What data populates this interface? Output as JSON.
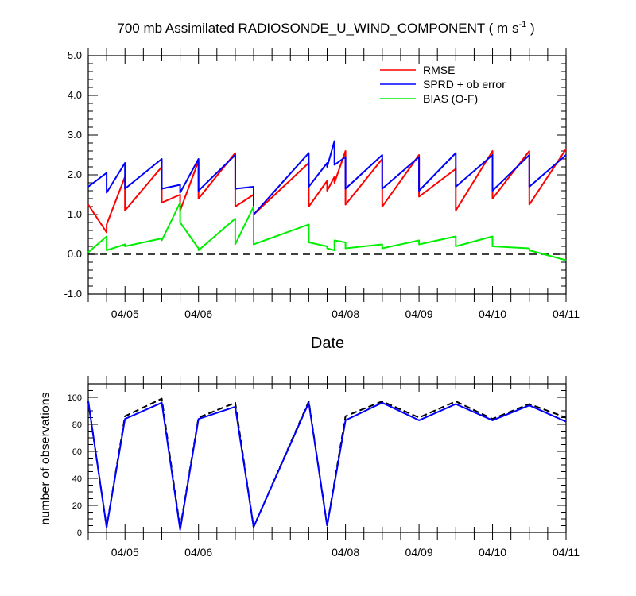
{
  "chart_data": [
    {
      "type": "line",
      "title": "700 mb Assimilated RADIOSONDE_U_WIND_COMPONENT ( m s",
      "title_superscript": "-1",
      "title_suffix": " )",
      "xlabel": "Date",
      "ylabel": "",
      "ylim": [
        -1.0,
        5.0
      ],
      "xlim": [
        0,
        6.5
      ],
      "ytick_labels": [
        "5.0",
        "4.0",
        "3.0",
        "2.0",
        "1.0",
        "0.0",
        "-1.0"
      ],
      "ytick_values": [
        5,
        4,
        3,
        2,
        1,
        0,
        -1
      ],
      "xtick_labels": [
        "04/05",
        "04/06",
        "04/08",
        "04/09",
        "04/10",
        "04/11"
      ],
      "xtick_values": [
        0.5,
        1.5,
        3.5,
        4.5,
        5.5,
        6.5
      ],
      "zero_line": "dashed",
      "legend_position": "top-right",
      "series": [
        {
          "name": "RMSE",
          "color": "#ff0000",
          "x": [
            0,
            0.25,
            0.25,
            0.5,
            0.5,
            1.0,
            1.0,
            1.25,
            1.25,
            1.5,
            1.5,
            2.0,
            2.0,
            2.25,
            2.25,
            3.0,
            3.0,
            3.25,
            3.25,
            3.35,
            3.35,
            3.5,
            3.5,
            4.0,
            4.0,
            4.5,
            4.5,
            5.0,
            5.0,
            5.5,
            5.5,
            6.0,
            6.0,
            6.5
          ],
          "y": [
            1.25,
            0.55,
            0.75,
            1.95,
            1.1,
            2.2,
            1.3,
            1.5,
            1.1,
            2.35,
            1.4,
            2.55,
            1.2,
            1.5,
            1.0,
            2.3,
            1.2,
            1.85,
            1.6,
            1.95,
            1.8,
            2.6,
            1.25,
            2.4,
            1.2,
            2.5,
            1.45,
            2.15,
            1.1,
            2.6,
            1.4,
            2.6,
            1.25,
            2.65
          ]
        },
        {
          "name": "SPRD + ob error",
          "color": "#0000ff",
          "x": [
            0,
            0.25,
            0.25,
            0.5,
            0.5,
            1.0,
            1.0,
            1.25,
            1.25,
            1.5,
            1.5,
            2.0,
            2.0,
            2.25,
            2.25,
            3.0,
            3.0,
            3.25,
            3.25,
            3.35,
            3.35,
            3.5,
            3.5,
            4.0,
            4.0,
            4.5,
            4.5,
            5.0,
            5.0,
            5.5,
            5.5,
            6.0,
            6.0,
            6.5
          ],
          "y": [
            1.7,
            2.05,
            1.55,
            2.3,
            1.65,
            2.4,
            1.65,
            1.75,
            1.55,
            2.4,
            1.6,
            2.5,
            1.65,
            1.7,
            1.0,
            2.55,
            1.7,
            2.3,
            2.2,
            2.85,
            2.25,
            2.45,
            1.65,
            2.5,
            1.65,
            2.45,
            1.6,
            2.55,
            1.7,
            2.5,
            1.6,
            2.5,
            1.7,
            2.5
          ]
        },
        {
          "name": "BIAS (O-F)",
          "color": "#00ee00",
          "x": [
            0,
            0.25,
            0.25,
            0.5,
            0.5,
            1.0,
            1.0,
            1.25,
            1.25,
            1.5,
            1.5,
            2.0,
            2.0,
            2.25,
            2.25,
            3.0,
            3.0,
            3.25,
            3.25,
            3.35,
            3.35,
            3.5,
            3.5,
            4.0,
            4.0,
            4.5,
            4.5,
            5.0,
            5.0,
            5.5,
            5.5,
            6.0,
            6.0,
            6.5
          ],
          "y": [
            0.05,
            0.45,
            0.1,
            0.25,
            0.2,
            0.4,
            0.35,
            1.3,
            0.8,
            0.15,
            0.1,
            0.9,
            0.25,
            1.2,
            0.25,
            0.75,
            0.3,
            0.2,
            0.15,
            0.1,
            0.35,
            0.3,
            0.15,
            0.25,
            0.15,
            0.35,
            0.25,
            0.45,
            0.2,
            0.45,
            0.2,
            0.15,
            0.1,
            -0.15
          ]
        }
      ]
    },
    {
      "type": "line",
      "title": "",
      "xlabel": "",
      "ylabel": "number of observations",
      "ylim": [
        0,
        110
      ],
      "xlim": [
        0,
        6.5
      ],
      "ytick_labels": [
        "100",
        "80",
        "60",
        "40",
        "20",
        "0"
      ],
      "ytick_values": [
        100,
        80,
        60,
        40,
        20,
        0
      ],
      "xtick_labels": [
        "04/05",
        "04/06",
        "04/08",
        "04/09",
        "04/10",
        "04/11"
      ],
      "xtick_values": [
        0.5,
        1.5,
        3.5,
        4.5,
        5.5,
        6.5
      ],
      "series": [
        {
          "style": "dashed",
          "color": "#000000",
          "x": [
            0,
            0.25,
            0.5,
            1.0,
            1.25,
            1.5,
            2.0,
            2.25,
            3.0,
            3.25,
            3.5,
            4.0,
            4.5,
            5.0,
            5.5,
            6.0,
            6.5
          ],
          "y": [
            97,
            4,
            86,
            99,
            3,
            85,
            96,
            4,
            97,
            5,
            86,
            97,
            85,
            97,
            84,
            95,
            85
          ]
        },
        {
          "style": "solid",
          "color": "#0000ff",
          "x": [
            0,
            0.25,
            0.5,
            1.0,
            1.25,
            1.5,
            2.0,
            2.25,
            3.0,
            3.25,
            3.5,
            4.0,
            4.5,
            5.0,
            5.5,
            6.0,
            6.5
          ],
          "y": [
            97,
            4,
            84,
            96,
            2,
            84,
            93,
            4,
            96,
            5,
            83,
            96,
            83,
            95,
            83,
            94,
            82
          ]
        }
      ]
    }
  ]
}
